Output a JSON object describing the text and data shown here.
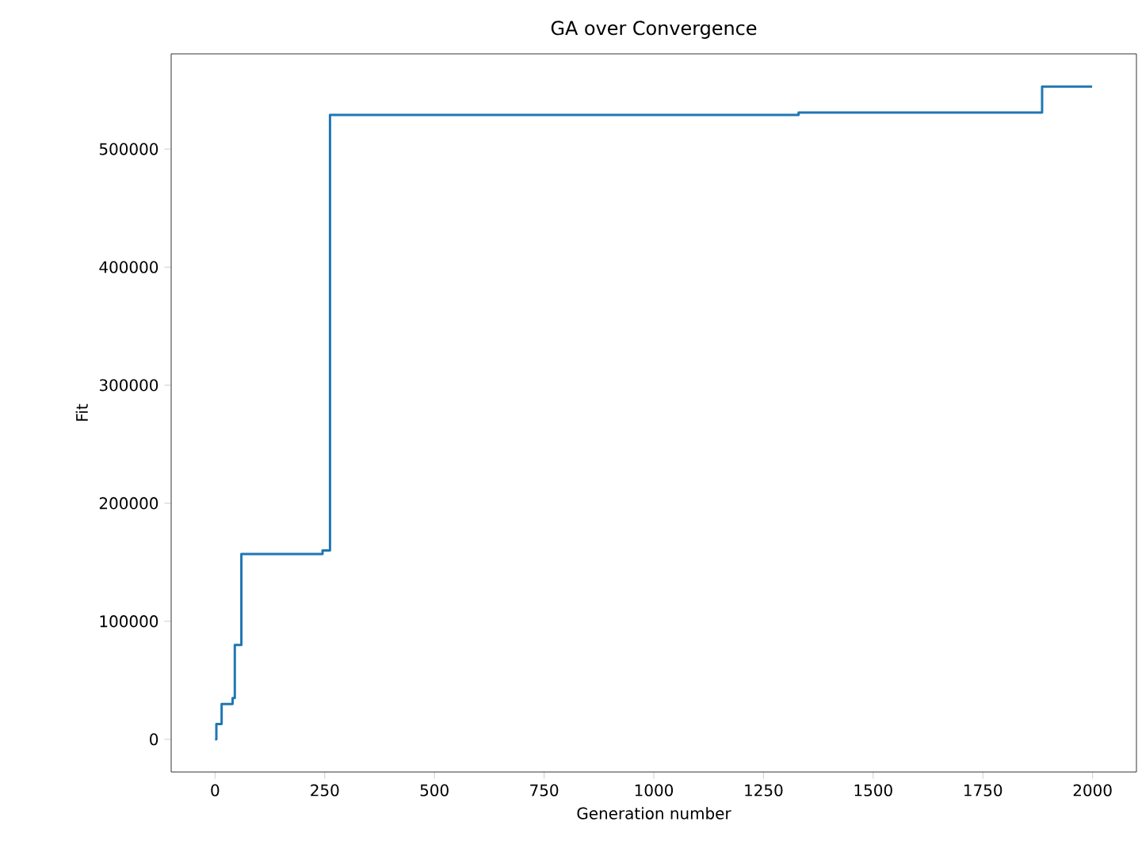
{
  "chart_data": {
    "type": "step",
    "title": "GA over Convergence",
    "xlabel": "Generation number",
    "ylabel": "Fit",
    "x": [
      0,
      3,
      15,
      40,
      45,
      60,
      245,
      262,
      1330,
      1885,
      1999
    ],
    "series": [
      {
        "color": "#1f77b4",
        "values": [
          0,
          13000,
          30000,
          35000,
          80000,
          157000,
          160000,
          529000,
          531000,
          553000,
          553000
        ]
      }
    ],
    "xlim": [
      -100,
      2100
    ],
    "ylim": [
      -27650,
      580650
    ],
    "xticks": [
      0,
      250,
      500,
      750,
      1000,
      1250,
      1500,
      1750,
      2000
    ],
    "yticks": [
      0,
      100000,
      200000,
      300000,
      400000,
      500000
    ],
    "grid": false
  }
}
